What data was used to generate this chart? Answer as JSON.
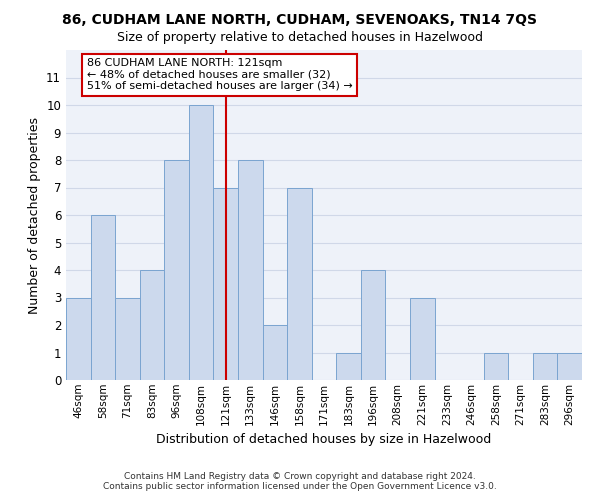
{
  "title": "86, CUDHAM LANE NORTH, CUDHAM, SEVENOAKS, TN14 7QS",
  "subtitle": "Size of property relative to detached houses in Hazelwood",
  "xlabel": "Distribution of detached houses by size in Hazelwood",
  "ylabel": "Number of detached properties",
  "categories": [
    "46sqm",
    "58sqm",
    "71sqm",
    "83sqm",
    "96sqm",
    "108sqm",
    "121sqm",
    "133sqm",
    "146sqm",
    "158sqm",
    "171sqm",
    "183sqm",
    "196sqm",
    "208sqm",
    "221sqm",
    "233sqm",
    "246sqm",
    "258sqm",
    "271sqm",
    "283sqm",
    "296sqm"
  ],
  "values": [
    3,
    6,
    3,
    4,
    8,
    10,
    7,
    8,
    2,
    7,
    0,
    1,
    4,
    0,
    3,
    0,
    0,
    1,
    0,
    1,
    1
  ],
  "highlight_index": 6,
  "bar_color": "#ccd9ed",
  "bar_edge_color": "#7aa4d0",
  "highlight_line_color": "#cc0000",
  "annotation_line1": "86 CUDHAM LANE NORTH: 121sqm",
  "annotation_line2": "← 48% of detached houses are smaller (32)",
  "annotation_line3": "51% of semi-detached houses are larger (34) →",
  "annotation_box_color": "white",
  "annotation_box_edge": "#cc0000",
  "footer_line1": "Contains HM Land Registry data © Crown copyright and database right 2024.",
  "footer_line2": "Contains public sector information licensed under the Open Government Licence v3.0.",
  "ylim": [
    0,
    12
  ],
  "yticks": [
    0,
    1,
    2,
    3,
    4,
    5,
    6,
    7,
    8,
    9,
    10,
    11,
    12
  ],
  "background_color": "#ffffff",
  "plot_bg_color": "#eef2f9",
  "grid_color": "#d0d8e8"
}
